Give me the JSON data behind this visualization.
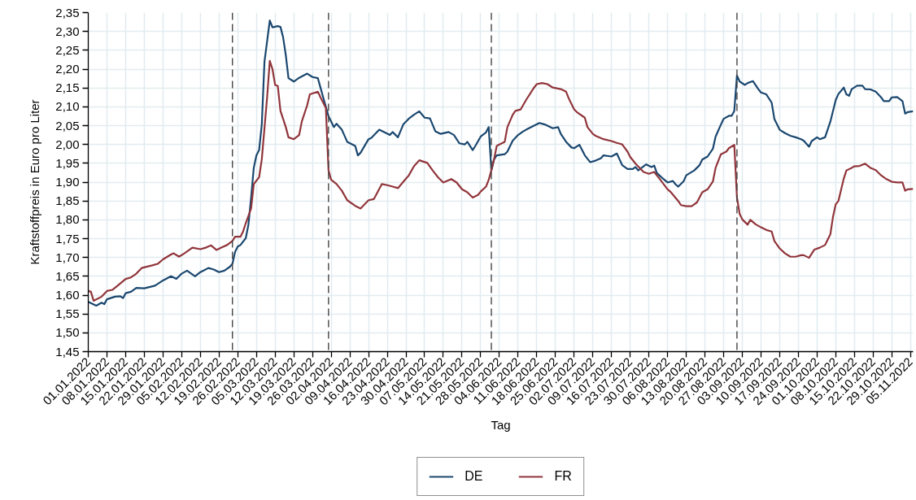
{
  "chart_data": {
    "type": "line",
    "xlabel": "Tag",
    "ylabel": "Kraftstoffpreis in Euro pro Liter",
    "xlim": [
      "2022-01-01",
      "2022-11-06"
    ],
    "ylim": [
      1.45,
      2.35
    ],
    "xticks": [
      {
        "value": "2022-01-01",
        "label": "01.01.2022"
      },
      {
        "value": "2022-01-08",
        "label": "08.01.2022"
      },
      {
        "value": "2022-01-15",
        "label": "15.01.2022"
      },
      {
        "value": "2022-01-22",
        "label": "22.01.2022"
      },
      {
        "value": "2022-01-29",
        "label": "29.01.2022"
      },
      {
        "value": "2022-02-05",
        "label": "05.02.2022"
      },
      {
        "value": "2022-02-12",
        "label": "12.02.2022"
      },
      {
        "value": "2022-02-19",
        "label": "19.02.2022"
      },
      {
        "value": "2022-02-26",
        "label": "26.02.2022"
      },
      {
        "value": "2022-03-05",
        "label": "05.03.2022"
      },
      {
        "value": "2022-03-12",
        "label": "12.03.2022"
      },
      {
        "value": "2022-03-19",
        "label": "19.03.2022"
      },
      {
        "value": "2022-03-26",
        "label": "26.03.2022"
      },
      {
        "value": "2022-04-02",
        "label": "02.04.2022"
      },
      {
        "value": "2022-04-09",
        "label": "09.04.2022"
      },
      {
        "value": "2022-04-16",
        "label": "16.04.2022"
      },
      {
        "value": "2022-04-23",
        "label": "23.04.2022"
      },
      {
        "value": "2022-04-30",
        "label": "30.04.2022"
      },
      {
        "value": "2022-05-07",
        "label": "07.05.2022"
      },
      {
        "value": "2022-05-14",
        "label": "14.05.2022"
      },
      {
        "value": "2022-05-21",
        "label": "21.05.2022"
      },
      {
        "value": "2022-05-28",
        "label": "28.05.2022"
      },
      {
        "value": "2022-06-04",
        "label": "04.06.2022"
      },
      {
        "value": "2022-06-11",
        "label": "11.06.2022"
      },
      {
        "value": "2022-06-18",
        "label": "18.06.2022"
      },
      {
        "value": "2022-06-25",
        "label": "25.06.2022"
      },
      {
        "value": "2022-07-02",
        "label": "02.07.2022"
      },
      {
        "value": "2022-07-09",
        "label": "09.07.2022"
      },
      {
        "value": "2022-07-16",
        "label": "16.07.2022"
      },
      {
        "value": "2022-07-23",
        "label": "23.07.2022"
      },
      {
        "value": "2022-07-30",
        "label": "30.07.2022"
      },
      {
        "value": "2022-08-06",
        "label": "06.08.2022"
      },
      {
        "value": "2022-08-13",
        "label": "13.08.2022"
      },
      {
        "value": "2022-08-20",
        "label": "20.08.2022"
      },
      {
        "value": "2022-08-27",
        "label": "27.08.2022"
      },
      {
        "value": "2022-09-03",
        "label": "03.09.2022"
      },
      {
        "value": "2022-09-10",
        "label": "10.09.2022"
      },
      {
        "value": "2022-09-17",
        "label": "17.09.2022"
      },
      {
        "value": "2022-09-24",
        "label": "24.09.2022"
      },
      {
        "value": "2022-10-01",
        "label": "01.10.2022"
      },
      {
        "value": "2022-10-08",
        "label": "08.10.2022"
      },
      {
        "value": "2022-10-15",
        "label": "15.10.2022"
      },
      {
        "value": "2022-10-22",
        "label": "22.10.2022"
      },
      {
        "value": "2022-10-29",
        "label": "29.10.2022"
      },
      {
        "value": "2022-11-05",
        "label": "05.11.2022"
      }
    ],
    "yticks": [
      {
        "value": 1.45,
        "label": "1,45"
      },
      {
        "value": 1.5,
        "label": "1,50"
      },
      {
        "value": 1.55,
        "label": "1,55"
      },
      {
        "value": 1.6,
        "label": "1,60"
      },
      {
        "value": 1.65,
        "label": "1,65"
      },
      {
        "value": 1.7,
        "label": "1,70"
      },
      {
        "value": 1.75,
        "label": "1,75"
      },
      {
        "value": 1.8,
        "label": "1,80"
      },
      {
        "value": 1.85,
        "label": "1,85"
      },
      {
        "value": 1.9,
        "label": "1,90"
      },
      {
        "value": 1.95,
        "label": "1,95"
      },
      {
        "value": 2.0,
        "label": "2,00"
      },
      {
        "value": 2.05,
        "label": "2,05"
      },
      {
        "value": 2.1,
        "label": "2,10"
      },
      {
        "value": 2.15,
        "label": "2,15"
      },
      {
        "value": 2.2,
        "label": "2,20"
      },
      {
        "value": 2.25,
        "label": "2,25"
      },
      {
        "value": 2.3,
        "label": "2,30"
      },
      {
        "value": 2.35,
        "label": "2,35"
      }
    ],
    "grid": true,
    "legend": "bottom",
    "ref_lines": [
      {
        "axis": "x",
        "value": "2022-02-24",
        "color": "#444444",
        "line_style": "dashed"
      },
      {
        "axis": "x",
        "value": "2022-04-01",
        "color": "#444444",
        "line_style": "dashed"
      },
      {
        "axis": "x",
        "value": "2022-06-01",
        "color": "#444444",
        "line_style": "dashed"
      },
      {
        "axis": "x",
        "value": "2022-09-01",
        "color": "#444444",
        "line_style": "dashed"
      }
    ],
    "series": [
      {
        "name": "DE",
        "color": "#1a476f",
        "x": [
          "2022-01-01",
          "2022-01-04",
          "2022-01-06",
          "2022-01-07",
          "2022-01-08",
          "2022-01-11",
          "2022-01-13",
          "2022-01-14",
          "2022-01-15",
          "2022-01-17",
          "2022-01-19",
          "2022-01-22",
          "2022-01-26",
          "2022-01-29",
          "2022-02-01",
          "2022-02-03",
          "2022-02-05",
          "2022-02-07",
          "2022-02-10",
          "2022-02-12",
          "2022-02-15",
          "2022-02-17",
          "2022-02-19",
          "2022-02-21",
          "2022-02-23",
          "2022-02-24",
          "2022-02-25",
          "2022-02-26",
          "2022-02-27",
          "2022-03-01",
          "2022-03-02",
          "2022-03-03",
          "2022-03-04",
          "2022-03-05",
          "2022-03-06",
          "2022-03-07",
          "2022-03-08",
          "2022-03-10",
          "2022-03-11",
          "2022-03-13",
          "2022-03-14",
          "2022-03-15",
          "2022-03-16",
          "2022-03-17",
          "2022-03-19",
          "2022-03-21",
          "2022-03-24",
          "2022-03-26",
          "2022-03-28",
          "2022-03-30",
          "2022-04-01",
          "2022-04-03",
          "2022-04-04",
          "2022-04-06",
          "2022-04-08",
          "2022-04-11",
          "2022-04-12",
          "2022-04-13",
          "2022-04-16",
          "2022-04-17",
          "2022-04-20",
          "2022-04-22",
          "2022-04-24",
          "2022-04-25",
          "2022-04-27",
          "2022-04-29",
          "2022-05-01",
          "2022-05-03",
          "2022-05-05",
          "2022-05-07",
          "2022-05-09",
          "2022-05-11",
          "2022-05-13",
          "2022-05-16",
          "2022-05-18",
          "2022-05-20",
          "2022-05-22",
          "2022-05-23",
          "2022-05-25",
          "2022-05-26",
          "2022-05-28",
          "2022-05-30",
          "2022-05-31",
          "2022-06-01",
          "2022-06-02",
          "2022-06-03",
          "2022-06-06",
          "2022-06-07",
          "2022-06-09",
          "2022-06-11",
          "2022-06-13",
          "2022-06-14",
          "2022-06-17",
          "2022-06-19",
          "2022-06-21",
          "2022-06-24",
          "2022-06-26",
          "2022-06-27",
          "2022-06-29",
          "2022-07-01",
          "2022-07-02",
          "2022-07-04",
          "2022-07-06",
          "2022-07-08",
          "2022-07-10",
          "2022-07-12",
          "2022-07-13",
          "2022-07-16",
          "2022-07-18",
          "2022-07-20",
          "2022-07-22",
          "2022-07-24",
          "2022-07-25",
          "2022-07-26",
          "2022-07-28",
          "2022-07-29",
          "2022-07-31",
          "2022-08-01",
          "2022-08-02",
          "2022-08-04",
          "2022-08-06",
          "2022-08-08",
          "2022-08-09",
          "2022-08-10",
          "2022-08-12",
          "2022-08-13",
          "2022-08-16",
          "2022-08-18",
          "2022-08-19",
          "2022-08-21",
          "2022-08-23",
          "2022-08-24",
          "2022-08-26",
          "2022-08-27",
          "2022-08-29",
          "2022-08-30",
          "2022-08-31",
          "2022-09-01",
          "2022-09-02",
          "2022-09-04",
          "2022-09-05",
          "2022-09-07",
          "2022-09-09",
          "2022-09-10",
          "2022-09-12",
          "2022-09-14",
          "2022-09-15",
          "2022-09-17",
          "2022-09-19",
          "2022-09-21",
          "2022-09-23",
          "2022-09-25",
          "2022-09-26",
          "2022-09-28",
          "2022-09-29",
          "2022-10-01",
          "2022-10-02",
          "2022-10-04",
          "2022-10-06",
          "2022-10-08",
          "2022-10-09",
          "2022-10-11",
          "2022-10-12",
          "2022-10-13",
          "2022-10-14",
          "2022-10-16",
          "2022-10-18",
          "2022-10-19",
          "2022-10-21",
          "2022-10-23",
          "2022-10-25",
          "2022-10-26",
          "2022-10-28",
          "2022-10-29",
          "2022-10-31",
          "2022-11-02",
          "2022-11-03",
          "2022-11-04",
          "2022-11-06"
        ],
        "values": [
          1.582,
          1.572,
          1.58,
          1.576,
          1.589,
          1.596,
          1.597,
          1.592,
          1.605,
          1.609,
          1.619,
          1.618,
          1.625,
          1.639,
          1.65,
          1.643,
          1.657,
          1.665,
          1.65,
          1.661,
          1.672,
          1.668,
          1.661,
          1.665,
          1.675,
          1.683,
          1.715,
          1.729,
          1.733,
          1.751,
          1.787,
          1.859,
          1.938,
          1.971,
          1.985,
          2.053,
          2.219,
          2.329,
          2.311,
          2.314,
          2.312,
          2.284,
          2.237,
          2.176,
          2.167,
          2.177,
          2.188,
          2.179,
          2.176,
          2.125,
          2.075,
          2.046,
          2.055,
          2.039,
          2.007,
          1.996,
          1.971,
          1.978,
          2.014,
          2.017,
          2.039,
          2.032,
          2.025,
          2.033,
          2.019,
          2.053,
          2.068,
          2.079,
          2.088,
          2.071,
          2.069,
          2.035,
          2.028,
          2.033,
          2.025,
          2.003,
          2.0,
          2.007,
          1.985,
          1.996,
          2.021,
          2.032,
          2.046,
          1.931,
          1.96,
          1.971,
          1.974,
          1.981,
          2.01,
          2.025,
          2.035,
          2.039,
          2.05,
          2.057,
          2.053,
          2.043,
          2.046,
          2.028,
          2.007,
          1.992,
          1.99,
          1.999,
          1.971,
          1.953,
          1.957,
          1.963,
          1.971,
          1.968,
          1.976,
          1.945,
          1.935,
          1.935,
          1.94,
          1.931,
          1.942,
          1.947,
          1.94,
          1.944,
          1.924,
          1.911,
          1.899,
          1.903,
          1.894,
          1.888,
          1.902,
          1.918,
          1.931,
          1.945,
          1.96,
          1.968,
          1.989,
          2.021,
          2.053,
          2.068,
          2.076,
          2.076,
          2.089,
          2.183,
          2.167,
          2.158,
          2.163,
          2.168,
          2.147,
          2.138,
          2.133,
          2.111,
          2.068,
          2.039,
          2.03,
          2.023,
          2.019,
          2.014,
          2.01,
          1.994,
          2.009,
          2.019,
          2.014,
          2.019,
          2.061,
          2.118,
          2.134,
          2.151,
          2.133,
          2.129,
          2.147,
          2.156,
          2.156,
          2.147,
          2.146,
          2.14,
          2.125,
          2.115,
          2.115,
          2.125,
          2.126,
          2.115,
          2.082,
          2.086,
          2.088
        ]
      },
      {
        "name": "FR",
        "color": "#90353b",
        "x": [
          "2022-01-01",
          "2022-01-02",
          "2022-01-03",
          "2022-01-06",
          "2022-01-08",
          "2022-01-10",
          "2022-01-12",
          "2022-01-15",
          "2022-01-17",
          "2022-01-19",
          "2022-01-21",
          "2022-01-25",
          "2022-01-27",
          "2022-01-29",
          "2022-02-01",
          "2022-02-02",
          "2022-02-04",
          "2022-02-06",
          "2022-02-09",
          "2022-02-12",
          "2022-02-14",
          "2022-02-16",
          "2022-02-18",
          "2022-02-20",
          "2022-02-22",
          "2022-02-24",
          "2022-02-25",
          "2022-02-27",
          "2022-02-28",
          "2022-03-01",
          "2022-03-03",
          "2022-03-04",
          "2022-03-06",
          "2022-03-07",
          "2022-03-09",
          "2022-03-10",
          "2022-03-11",
          "2022-03-12",
          "2022-03-13",
          "2022-03-14",
          "2022-03-16",
          "2022-03-17",
          "2022-03-19",
          "2022-03-21",
          "2022-03-22",
          "2022-03-24",
          "2022-03-25",
          "2022-03-28",
          "2022-03-29",
          "2022-03-31",
          "2022-04-01",
          "2022-04-02",
          "2022-04-04",
          "2022-04-06",
          "2022-04-08",
          "2022-04-11",
          "2022-04-13",
          "2022-04-16",
          "2022-04-18",
          "2022-04-21",
          "2022-04-23",
          "2022-04-25",
          "2022-04-27",
          "2022-04-30",
          "2022-05-01",
          "2022-05-03",
          "2022-05-05",
          "2022-05-08",
          "2022-05-10",
          "2022-05-12",
          "2022-05-14",
          "2022-05-17",
          "2022-05-19",
          "2022-05-21",
          "2022-05-23",
          "2022-05-25",
          "2022-05-27",
          "2022-05-28",
          "2022-05-30",
          "2022-05-31",
          "2022-06-01",
          "2022-06-02",
          "2022-06-03",
          "2022-06-04",
          "2022-06-06",
          "2022-06-07",
          "2022-06-09",
          "2022-06-10",
          "2022-06-12",
          "2022-06-14",
          "2022-06-17",
          "2022-06-18",
          "2022-06-20",
          "2022-06-22",
          "2022-06-24",
          "2022-06-27",
          "2022-06-29",
          "2022-06-30",
          "2022-07-02",
          "2022-07-03",
          "2022-07-06",
          "2022-07-07",
          "2022-07-09",
          "2022-07-10",
          "2022-07-13",
          "2022-07-16",
          "2022-07-18",
          "2022-07-20",
          "2022-07-22",
          "2022-07-23",
          "2022-07-25",
          "2022-07-28",
          "2022-07-30",
          "2022-08-01",
          "2022-08-03",
          "2022-08-06",
          "2022-08-07",
          "2022-08-10",
          "2022-08-11",
          "2022-08-13",
          "2022-08-15",
          "2022-08-17",
          "2022-08-19",
          "2022-08-21",
          "2022-08-23",
          "2022-08-24",
          "2022-08-26",
          "2022-08-28",
          "2022-08-29",
          "2022-08-31",
          "2022-09-01",
          "2022-09-02",
          "2022-09-03",
          "2022-09-05",
          "2022-09-06",
          "2022-09-08",
          "2022-09-10",
          "2022-09-12",
          "2022-09-14",
          "2022-09-15",
          "2022-09-17",
          "2022-09-19",
          "2022-09-21",
          "2022-09-23",
          "2022-09-25",
          "2022-09-26",
          "2022-09-28",
          "2022-09-30",
          "2022-10-02",
          "2022-10-04",
          "2022-10-06",
          "2022-10-07",
          "2022-10-08",
          "2022-10-09",
          "2022-10-11",
          "2022-10-12",
          "2022-10-14",
          "2022-10-15",
          "2022-10-17",
          "2022-10-19",
          "2022-10-21",
          "2022-10-23",
          "2022-10-25",
          "2022-10-27",
          "2022-10-29",
          "2022-10-31",
          "2022-11-02",
          "2022-11-03",
          "2022-11-04",
          "2022-11-06"
        ],
        "values": [
          1.611,
          1.609,
          1.585,
          1.596,
          1.611,
          1.614,
          1.625,
          1.643,
          1.647,
          1.657,
          1.672,
          1.679,
          1.683,
          1.695,
          1.708,
          1.711,
          1.702,
          1.711,
          1.726,
          1.722,
          1.726,
          1.732,
          1.72,
          1.727,
          1.733,
          1.744,
          1.755,
          1.755,
          1.769,
          1.791,
          1.83,
          1.895,
          1.913,
          1.96,
          2.125,
          2.222,
          2.2,
          2.158,
          2.155,
          2.089,
          2.046,
          2.019,
          2.014,
          2.025,
          2.061,
          2.104,
          2.133,
          2.14,
          2.125,
          2.097,
          1.931,
          1.906,
          1.895,
          1.877,
          1.852,
          1.837,
          1.83,
          1.852,
          1.855,
          1.895,
          1.892,
          1.888,
          1.884,
          1.909,
          1.917,
          1.942,
          1.958,
          1.951,
          1.931,
          1.913,
          1.899,
          1.908,
          1.899,
          1.881,
          1.873,
          1.859,
          1.866,
          1.875,
          1.888,
          1.906,
          1.932,
          1.96,
          1.996,
          2.0,
          2.007,
          2.046,
          2.079,
          2.089,
          2.093,
          2.118,
          2.151,
          2.16,
          2.163,
          2.16,
          2.151,
          2.147,
          2.14,
          2.122,
          2.093,
          2.086,
          2.071,
          2.046,
          2.028,
          2.023,
          2.014,
          2.009,
          2.004,
          2.0,
          1.981,
          1.967,
          1.949,
          1.927,
          1.922,
          1.927,
          1.909,
          1.881,
          1.875,
          1.85,
          1.839,
          1.836,
          1.836,
          1.846,
          1.873,
          1.881,
          1.902,
          1.938,
          1.974,
          1.981,
          1.99,
          1.999,
          1.859,
          1.816,
          1.801,
          1.787,
          1.8,
          1.788,
          1.78,
          1.773,
          1.769,
          1.744,
          1.724,
          1.711,
          1.702,
          1.702,
          1.706,
          1.706,
          1.699,
          1.721,
          1.726,
          1.733,
          1.762,
          1.809,
          1.841,
          1.85,
          1.909,
          1.931,
          1.938,
          1.942,
          1.943,
          1.949,
          1.938,
          1.932,
          1.918,
          1.908,
          1.901,
          1.899,
          1.899,
          1.877,
          1.881,
          1.882
        ]
      }
    ]
  }
}
